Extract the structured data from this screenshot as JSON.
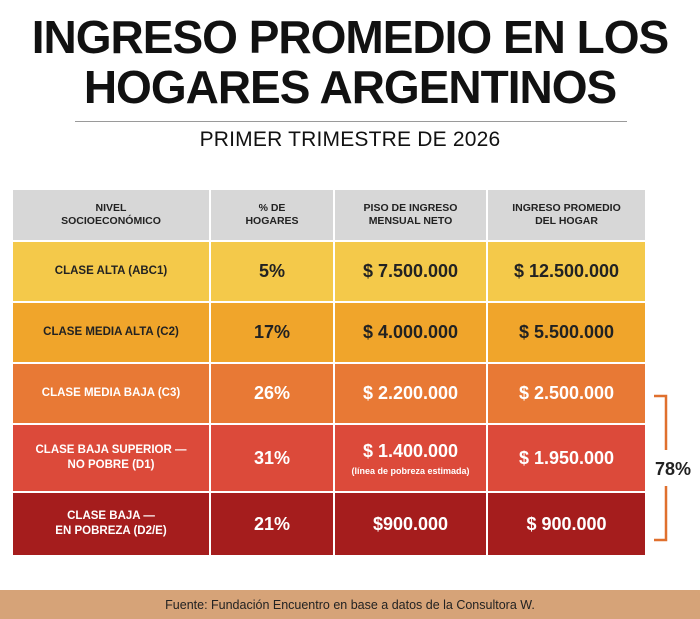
{
  "title": {
    "line1": "INGRESO PROMEDIO EN LOS",
    "line2": "HOGARES ARGENTINOS"
  },
  "subtitle": "PRIMER TRIMESTRE DE 2026",
  "table": {
    "headers": [
      {
        "line1": "NIVEL",
        "line2": "SOCIOECONÓMICO"
      },
      {
        "line1": "% DE",
        "line2": "HOGARES"
      },
      {
        "line1": "PISO DE INGRESO",
        "line2": "MENSUAL NETO"
      },
      {
        "line1": "INGRESO PROMEDIO",
        "line2": "DEL HOGAR"
      }
    ],
    "rows": [
      {
        "class_line1": "CLASE ALTA (ABC1)",
        "class_line2": "",
        "pct": "5%",
        "floor": "$ 7.500.000",
        "floor_note": "",
        "avg": "$ 12.500.000",
        "color": "#f4c94a"
      },
      {
        "class_line1": "CLASE MEDIA ALTA (C2)",
        "class_line2": "",
        "pct": "17%",
        "floor": "$ 4.000.000",
        "floor_note": "",
        "avg": "$ 5.500.000",
        "color": "#f0a52b"
      },
      {
        "class_line1": "CLASE MEDIA BAJA (C3)",
        "class_line2": "",
        "pct": "26%",
        "floor": "$ 2.200.000",
        "floor_note": "",
        "avg": "$ 2.500.000",
        "color": "#e87935"
      },
      {
        "class_line1": "CLASE BAJA SUPERIOR —",
        "class_line2": "NO POBRE (D1)",
        "pct": "31%",
        "floor": "$ 1.400.000",
        "floor_note": "(línea de pobreza estimada)",
        "avg": "$ 1.950.000",
        "color": "#dc4a3a"
      },
      {
        "class_line1": "CLASE BAJA —",
        "class_line2": "EN POBREZA (D2/E)",
        "pct": "21%",
        "floor": "$900.000",
        "floor_note": "",
        "avg": "$ 900.000",
        "color": "#a51d1d"
      }
    ]
  },
  "bracket": {
    "label": "78%",
    "color": "#e0702e"
  },
  "footer": "Fuente: Fundación Encuentro en base a datos de la Consultora W."
}
